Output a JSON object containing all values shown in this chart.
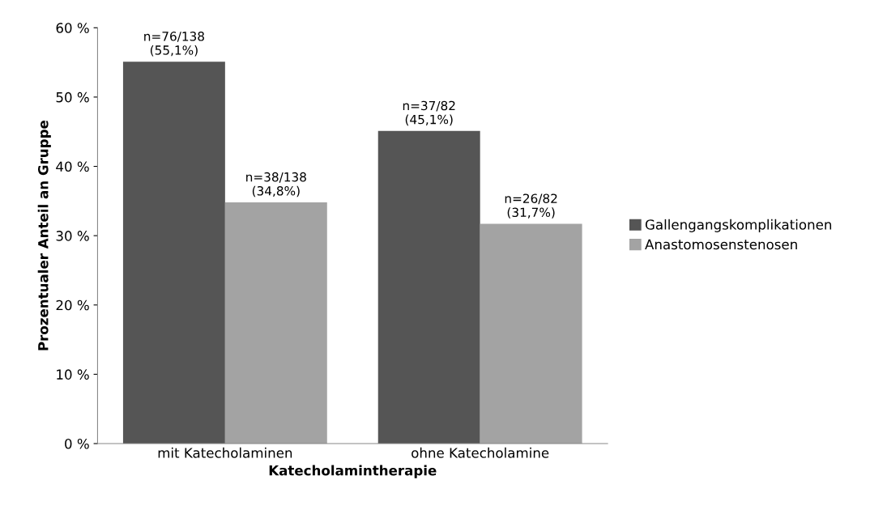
{
  "chart_data": {
    "type": "bar",
    "xlabel": "Katecholamintherapie",
    "ylabel": "Prozentualer Anteil an Gruppe",
    "categories": [
      "mit Katecholaminen",
      "ohne Katecholamine"
    ],
    "series": [
      {
        "name": "Gallengangskomplikationen",
        "color": "#555555",
        "values": [
          55.1,
          45.1
        ],
        "value_labels": [
          "n=76/138\n(55,1%)",
          "n=37/82\n(45,1%)"
        ]
      },
      {
        "name": "Anastomosenstenosen",
        "color": "#a3a3a3",
        "values": [
          34.8,
          31.7
        ],
        "value_labels": [
          "n=38/138\n(34,8%)",
          "n=26/82\n(31,7%)"
        ]
      }
    ],
    "ylim": [
      0,
      60
    ],
    "yticks": [
      {
        "value": 0,
        "label": "0 %"
      },
      {
        "value": 10,
        "label": "10 %"
      },
      {
        "value": 20,
        "label": "20 %"
      },
      {
        "value": 30,
        "label": "30 %"
      },
      {
        "value": 40,
        "label": "40 %"
      },
      {
        "value": 50,
        "label": "50 %"
      },
      {
        "value": 60,
        "label": "60 %"
      }
    ],
    "grid": false,
    "legend": "right"
  }
}
